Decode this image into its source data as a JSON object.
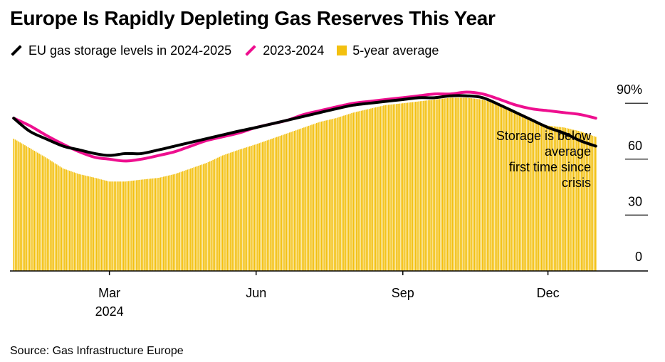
{
  "title": "Europe Is Rapidly Depleting Gas Reserves This Year",
  "source": "Source: Gas Infrastructure Europe",
  "legend": [
    {
      "label": "EU gas storage levels in 2024-2025",
      "color": "#000000",
      "shape": "line"
    },
    {
      "label": "2023-2024",
      "color": "#ee0f8f",
      "shape": "line"
    },
    {
      "label": "5-year average",
      "color": "#f3c00f",
      "shape": "bar"
    }
  ],
  "annotation": [
    "Storage is below",
    "average",
    "first time since",
    "crisis"
  ],
  "chart_data": {
    "type": "area",
    "title": "Europe Is Rapidly Depleting Gas Reserves This Year",
    "xlabel": "",
    "ylabel": "",
    "x_axis": {
      "domain": [
        "2023-12-31",
        "2025-01-05"
      ],
      "ticks": [
        {
          "date": "2024-03-01",
          "label": "Mar",
          "sublabel": "2024"
        },
        {
          "date": "2024-06-01",
          "label": "Jun",
          "sublabel": ""
        },
        {
          "date": "2024-09-01",
          "label": "Sep",
          "sublabel": ""
        },
        {
          "date": "2024-12-01",
          "label": "Dec",
          "sublabel": ""
        }
      ]
    },
    "y_axis": {
      "range": [
        0,
        100
      ],
      "ticks": [
        0,
        30,
        60,
        90
      ],
      "tick_labels": [
        "0",
        "30",
        "60",
        "90%"
      ],
      "position": "right"
    },
    "grid": false,
    "legend_position": "top-left",
    "series": [
      {
        "name": "EU gas storage levels in 2024-2025",
        "type": "line",
        "color": "#000000",
        "points": [
          [
            "2024-01-01",
            82
          ],
          [
            "2024-01-11",
            75
          ],
          [
            "2024-01-21",
            71
          ],
          [
            "2024-02-01",
            67
          ],
          [
            "2024-02-11",
            65
          ],
          [
            "2024-02-21",
            63
          ],
          [
            "2024-03-01",
            62
          ],
          [
            "2024-03-11",
            63
          ],
          [
            "2024-03-21",
            63
          ],
          [
            "2024-04-01",
            65
          ],
          [
            "2024-04-11",
            67
          ],
          [
            "2024-04-21",
            69
          ],
          [
            "2024-05-01",
            71
          ],
          [
            "2024-05-11",
            73
          ],
          [
            "2024-05-21",
            75
          ],
          [
            "2024-06-01",
            77
          ],
          [
            "2024-06-11",
            79
          ],
          [
            "2024-06-21",
            81
          ],
          [
            "2024-07-01",
            83
          ],
          [
            "2024-07-11",
            85
          ],
          [
            "2024-07-21",
            87
          ],
          [
            "2024-08-01",
            89
          ],
          [
            "2024-08-11",
            90
          ],
          [
            "2024-08-21",
            91
          ],
          [
            "2024-09-01",
            92
          ],
          [
            "2024-09-11",
            93
          ],
          [
            "2024-09-21",
            93
          ],
          [
            "2024-10-01",
            94
          ],
          [
            "2024-10-11",
            94
          ],
          [
            "2024-10-21",
            93
          ],
          [
            "2024-11-01",
            89
          ],
          [
            "2024-11-11",
            85
          ],
          [
            "2024-11-21",
            81
          ],
          [
            "2024-12-01",
            77
          ],
          [
            "2024-12-11",
            74
          ],
          [
            "2024-12-21",
            70
          ],
          [
            "2024-12-31",
            67
          ]
        ]
      },
      {
        "name": "2023-2024",
        "type": "line",
        "color": "#ee0f8f",
        "points": [
          [
            "2024-01-01",
            82
          ],
          [
            "2024-01-11",
            78
          ],
          [
            "2024-01-21",
            73
          ],
          [
            "2024-02-01",
            68
          ],
          [
            "2024-02-11",
            64
          ],
          [
            "2024-02-21",
            61
          ],
          [
            "2024-03-01",
            60
          ],
          [
            "2024-03-11",
            59
          ],
          [
            "2024-03-21",
            60
          ],
          [
            "2024-04-01",
            62
          ],
          [
            "2024-04-11",
            64
          ],
          [
            "2024-04-21",
            67
          ],
          [
            "2024-05-01",
            70
          ],
          [
            "2024-05-11",
            72
          ],
          [
            "2024-05-21",
            74
          ],
          [
            "2024-06-01",
            77
          ],
          [
            "2024-06-11",
            79
          ],
          [
            "2024-06-21",
            81
          ],
          [
            "2024-07-01",
            84
          ],
          [
            "2024-07-11",
            86
          ],
          [
            "2024-07-21",
            88
          ],
          [
            "2024-08-01",
            90
          ],
          [
            "2024-08-11",
            91
          ],
          [
            "2024-08-21",
            92
          ],
          [
            "2024-09-01",
            93
          ],
          [
            "2024-09-11",
            94
          ],
          [
            "2024-09-21",
            95
          ],
          [
            "2024-10-01",
            95
          ],
          [
            "2024-10-11",
            96
          ],
          [
            "2024-10-21",
            95
          ],
          [
            "2024-11-01",
            92
          ],
          [
            "2024-11-11",
            89
          ],
          [
            "2024-11-21",
            87
          ],
          [
            "2024-12-01",
            86
          ],
          [
            "2024-12-11",
            85
          ],
          [
            "2024-12-21",
            84
          ],
          [
            "2024-12-31",
            82
          ]
        ]
      },
      {
        "name": "5-year average",
        "type": "bar",
        "color": "#f3c00f",
        "points": [
          [
            "2024-01-01",
            71
          ],
          [
            "2024-01-11",
            66
          ],
          [
            "2024-01-21",
            61
          ],
          [
            "2024-02-01",
            55
          ],
          [
            "2024-02-11",
            52
          ],
          [
            "2024-02-21",
            50
          ],
          [
            "2024-03-01",
            48
          ],
          [
            "2024-03-11",
            48
          ],
          [
            "2024-03-21",
            49
          ],
          [
            "2024-04-01",
            50
          ],
          [
            "2024-04-11",
            52
          ],
          [
            "2024-04-21",
            55
          ],
          [
            "2024-05-01",
            58
          ],
          [
            "2024-05-11",
            62
          ],
          [
            "2024-05-21",
            65
          ],
          [
            "2024-06-01",
            68
          ],
          [
            "2024-06-11",
            71
          ],
          [
            "2024-06-21",
            74
          ],
          [
            "2024-07-01",
            77
          ],
          [
            "2024-07-11",
            80
          ],
          [
            "2024-07-21",
            82
          ],
          [
            "2024-08-01",
            85
          ],
          [
            "2024-08-11",
            87
          ],
          [
            "2024-08-21",
            89
          ],
          [
            "2024-09-01",
            90
          ],
          [
            "2024-09-11",
            91
          ],
          [
            "2024-09-21",
            92
          ],
          [
            "2024-10-01",
            93
          ],
          [
            "2024-10-11",
            93
          ],
          [
            "2024-10-21",
            92
          ],
          [
            "2024-11-01",
            89
          ],
          [
            "2024-11-11",
            85
          ],
          [
            "2024-11-21",
            81
          ],
          [
            "2024-12-01",
            78
          ],
          [
            "2024-12-11",
            77
          ],
          [
            "2024-12-21",
            75
          ],
          [
            "2024-12-31",
            72
          ]
        ]
      }
    ]
  }
}
